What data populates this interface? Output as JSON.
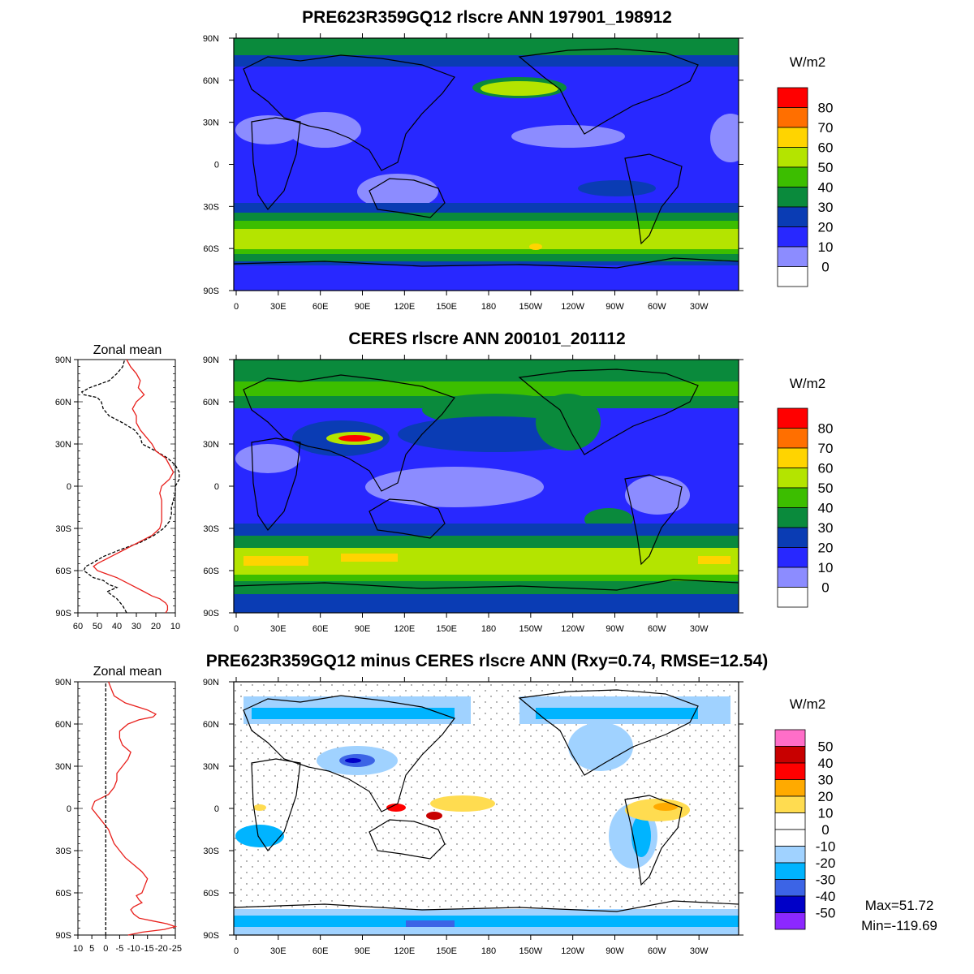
{
  "figure": {
    "panel1_title": "PRE623R359GQ12 rlscre ANN 197901_198912",
    "panel2_title": "CERES rlscre ANN 200101_201112",
    "panel3_title": "PRE623R359GQ12 minus CERES rlscre ANN (Rxy=0.74, RMSE=12.54)",
    "zonal_title": "Zonal mean",
    "units": "W/m2",
    "max_label": "Max=51.72",
    "min_label": "Min=-119.69"
  },
  "chart_data": [
    {
      "type": "heatmap",
      "title": "PRE623R359GQ12 rlscre ANN 197901_198912",
      "x_ticks": [
        "0",
        "30E",
        "60E",
        "90E",
        "120E",
        "150E",
        "180",
        "150W",
        "120W",
        "90W",
        "60W",
        "30W"
      ],
      "y_ticks": [
        "90N",
        "60N",
        "30N",
        "0",
        "30S",
        "60S",
        "90S"
      ],
      "colorbar_labels": [
        "80",
        "70",
        "60",
        "50",
        "40",
        "30",
        "20",
        "10",
        "0"
      ],
      "colorbar_colors": [
        "#ff0000",
        "#ff6f00",
        "#ffd400",
        "#b4e400",
        "#3cbe00",
        "#0a8a3c",
        "#0a3cb4",
        "#2828ff",
        "#8c8cff",
        "#ffffff"
      ],
      "units": "W/m2",
      "zonal_mean_approx": {
        "lat": [
          90,
          75,
          60,
          45,
          30,
          15,
          0,
          -15,
          -30,
          -45,
          -55,
          -65,
          -75,
          -90
        ],
        "value": [
          35,
          30,
          40,
          25,
          15,
          12,
          18,
          16,
          18,
          35,
          50,
          45,
          25,
          15
        ]
      }
    },
    {
      "type": "heatmap",
      "title": "CERES rlscre ANN 200101_201112",
      "x_ticks": [
        "0",
        "30E",
        "60E",
        "90E",
        "120E",
        "150E",
        "180",
        "150W",
        "120W",
        "90W",
        "60W",
        "30W"
      ],
      "y_ticks": [
        "90N",
        "60N",
        "30N",
        "0",
        "30S",
        "60S",
        "90S"
      ],
      "colorbar_labels": [
        "80",
        "70",
        "60",
        "50",
        "40",
        "30",
        "20",
        "10",
        "0"
      ],
      "colorbar_colors": [
        "#ff0000",
        "#ff6f00",
        "#ffd400",
        "#b4e400",
        "#3cbe00",
        "#0a8a3c",
        "#0a3cb4",
        "#2828ff",
        "#8c8cff",
        "#ffffff"
      ],
      "units": "W/m2"
    },
    {
      "type": "line",
      "title": "Zonal mean",
      "x_ticks": [
        "60",
        "50",
        "40",
        "30",
        "20",
        "10"
      ],
      "xlim": [
        60,
        10
      ],
      "y_ticks": [
        "90N",
        "60N",
        "30N",
        "0",
        "30S",
        "60S",
        "90S"
      ],
      "ylim": [
        -90,
        90
      ],
      "series": [
        {
          "color": "#000000",
          "dash": true,
          "lat": [
            -90,
            -85,
            -80,
            -75,
            -72,
            -70,
            -67,
            -65,
            -62,
            -60,
            -57,
            -55,
            -50,
            -45,
            -40,
            -35,
            -30,
            -25,
            -20,
            -15,
            -10,
            -5,
            0,
            5,
            10,
            15,
            20,
            25,
            30,
            35,
            40,
            45,
            50,
            55,
            60,
            63,
            65,
            67,
            70,
            75,
            80,
            85,
            90
          ],
          "value": [
            35,
            37,
            40,
            45,
            40,
            44,
            47,
            52,
            55,
            57,
            56,
            53,
            47,
            38,
            28,
            21,
            16,
            13,
            12,
            12,
            11,
            10,
            10,
            8,
            8,
            10,
            14,
            20,
            27,
            28,
            31,
            37,
            44,
            47,
            48,
            50,
            57,
            58,
            54,
            44,
            40,
            37,
            36
          ]
        },
        {
          "color": "#e8201c",
          "dash": false,
          "lat": [
            -90,
            -88,
            -85,
            -83,
            -80,
            -78,
            -75,
            -70,
            -65,
            -62,
            -60,
            -57,
            -55,
            -50,
            -45,
            -40,
            -35,
            -30,
            -25,
            -20,
            -15,
            -10,
            -5,
            0,
            5,
            10,
            15,
            20,
            25,
            30,
            35,
            40,
            45,
            50,
            55,
            60,
            65,
            70,
            75,
            80,
            85,
            90
          ],
          "value": [
            15,
            14,
            14,
            15,
            18,
            22,
            26,
            33,
            40,
            46,
            50,
            52,
            50,
            43,
            36,
            29,
            22,
            18,
            17,
            17,
            17,
            17,
            18,
            17,
            13,
            11,
            13,
            15,
            20,
            22,
            25,
            28,
            30,
            30,
            32,
            30,
            26,
            29,
            28,
            30,
            33,
            35
          ]
        }
      ]
    },
    {
      "type": "heatmap",
      "title": "PRE623R359GQ12 minus CERES rlscre ANN (Rxy=0.74, RMSE=12.54)",
      "x_ticks": [
        "0",
        "30E",
        "60E",
        "90E",
        "120E",
        "150E",
        "180",
        "150W",
        "120W",
        "90W",
        "60W",
        "30W"
      ],
      "y_ticks": [
        "90N",
        "60N",
        "30N",
        "0",
        "30S",
        "60S",
        "90S"
      ],
      "colorbar_labels": [
        "50",
        "40",
        "30",
        "20",
        "10",
        "0",
        "-10",
        "-20",
        "-30",
        "-40",
        "-50"
      ],
      "colorbar_colors": [
        "#ff6ec8",
        "#c80000",
        "#ff0000",
        "#ffaa00",
        "#ffdc50",
        "#ffffff",
        "#ffffff",
        "#a0d2ff",
        "#00b4ff",
        "#3c64e6",
        "#0000c8",
        "#8c28ff"
      ],
      "units": "W/m2",
      "max": 51.72,
      "min": -119.69
    },
    {
      "type": "line",
      "title": "Zonal mean",
      "x_ticks": [
        "10",
        "5",
        "0",
        "-5",
        "-10",
        "-15",
        "-20",
        "-25"
      ],
      "xlim": [
        10,
        -25
      ],
      "y_ticks": [
        "90N",
        "60N",
        "30N",
        "0",
        "30S",
        "60S",
        "90S"
      ],
      "ylim": [
        -90,
        90
      ],
      "series": [
        {
          "color": "#e8201c",
          "dash": false,
          "lat": [
            -90,
            -88,
            -86,
            -84,
            -82,
            -80,
            -78,
            -75,
            -72,
            -70,
            -67,
            -65,
            -62,
            -60,
            -55,
            -50,
            -45,
            -40,
            -35,
            -30,
            -25,
            -20,
            -15,
            -10,
            -5,
            0,
            5,
            10,
            15,
            20,
            25,
            30,
            35,
            40,
            45,
            50,
            55,
            60,
            63,
            65,
            67,
            70,
            75,
            80,
            85,
            90
          ],
          "value": [
            -8,
            -13,
            -21,
            -25,
            -22,
            -17,
            -12,
            -10,
            -9,
            -10,
            -13,
            -12,
            -11,
            -13,
            -14,
            -15,
            -13,
            -10,
            -7,
            -5,
            -3,
            -2,
            -1,
            1,
            3,
            5,
            4,
            -1,
            -3,
            -4,
            -4,
            -6,
            -8,
            -9,
            -6,
            -5,
            -5,
            -8,
            -12,
            -17,
            -18,
            -15,
            -7,
            -3,
            -2,
            -1
          ]
        },
        {
          "color": "#000000",
          "dash": true,
          "lat": [
            -90,
            90
          ],
          "value": [
            0,
            0
          ]
        }
      ]
    }
  ]
}
